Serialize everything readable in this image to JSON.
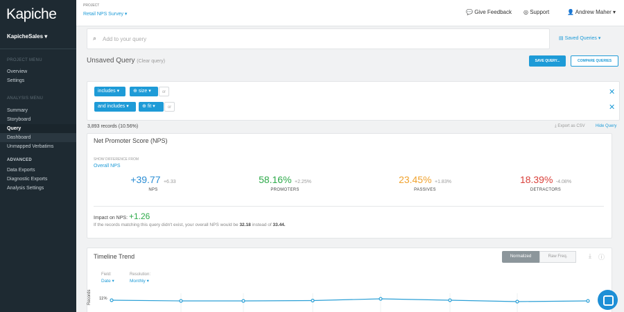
{
  "sidebar": {
    "logo": "Kapiche",
    "account": "KapicheSales",
    "project_menu": {
      "heading": "PROJECT MENU",
      "items": [
        "Overview",
        "Settings"
      ]
    },
    "analysis_menu": {
      "heading": "ANALYSIS MENU",
      "items": [
        "Summary",
        "Storyboard",
        "Query",
        "Dashboard",
        "Unmapped Verbatims"
      ]
    },
    "advanced": {
      "heading": "ADVANCED",
      "items": [
        "Data Exports",
        "Diagnostic Exports",
        "Analysis Settings"
      ]
    }
  },
  "topbar": {
    "project_label": "PROJECT",
    "project": "Retail NPS Survey",
    "links": [
      "Give Feedback",
      "Support",
      "Andrew Maher"
    ]
  },
  "query": {
    "placeholder": "Add to your query",
    "saved_queries": "Saved Queries",
    "title": "Unsaved Query",
    "clear": "(Clear query)",
    "save_button": "SAVE QUERY...",
    "compare_button": "COMPARE QUERIES",
    "rows": [
      {
        "operator": "includes",
        "term": "size",
        "extra": "or"
      },
      {
        "operator": "and includes",
        "term": "fit",
        "extra": "or"
      }
    ],
    "records": "3,893 records (10.56%)",
    "export": "Export as CSV",
    "hide": "Hide Query"
  },
  "nps": {
    "title": "Net Promoter Score (NPS)",
    "show_diff": "SHOW DIFFERENCE FROM",
    "baseline": "Overall NPS",
    "metrics": [
      {
        "value": "+39.77",
        "delta": "+6.33",
        "label": "NPS",
        "color": "#2a8dd4"
      },
      {
        "value": "58.16%",
        "delta": "+2.25%",
        "label": "PROMOTERS",
        "color": "#2eaa4a"
      },
      {
        "value": "23.45%",
        "delta": "+1.83%",
        "label": "PASSIVES",
        "color": "#f0a22e"
      },
      {
        "value": "18.39%",
        "delta": "-4.08%",
        "label": "DETRACTORS",
        "color": "#d9403a"
      }
    ],
    "impact_label": "Impact on NPS:",
    "impact_value": "+1.26",
    "note_prefix": "If the records matching this query didn't exist, your overall NPS would be",
    "note_new": "32.18",
    "note_mid": "instead of",
    "note_old": "33.44."
  },
  "timeline": {
    "title": "Timeline Trend",
    "toggle": [
      "Normalized",
      "Raw Freq."
    ],
    "field_label": "Field:",
    "field": "Date",
    "resolution_label": "Resolution:",
    "resolution": "Monthly",
    "y_tick": "11%",
    "y_axis_label": "Records"
  }
}
